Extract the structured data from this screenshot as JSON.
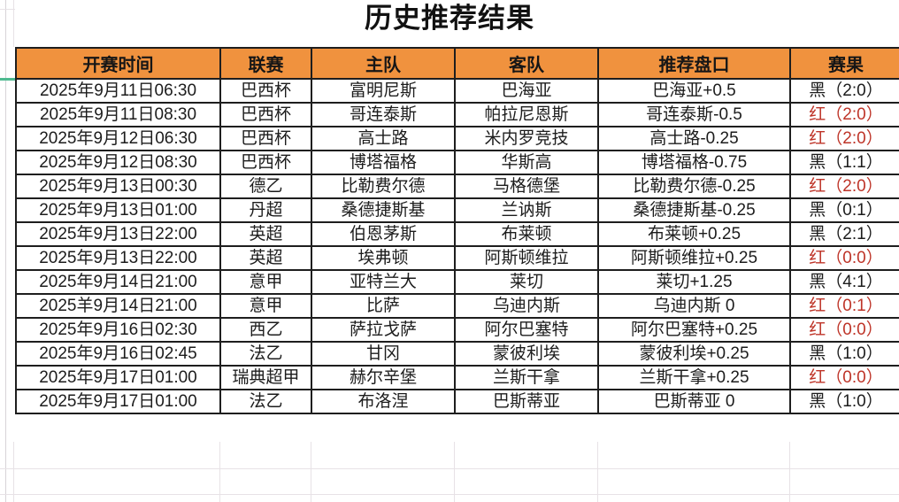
{
  "title": "历史推荐结果",
  "colors": {
    "header_bg": "#f0923e",
    "result_red": "#be3428",
    "result_black": "#1c1c1c",
    "freeze_indicator_green": "#4fba90"
  },
  "table": {
    "headers": [
      "开赛时间",
      "联赛",
      "主队",
      "客队",
      "推荐盘口",
      "赛果"
    ],
    "rows": [
      {
        "time": "2025年9月11日06:30",
        "league": "巴西杯",
        "home": "富明尼斯",
        "away": "巴海亚",
        "handicap": "巴海亚+0.5",
        "result": "黑（2:0）",
        "result_type": "black"
      },
      {
        "time": "2025年9月11日08:30",
        "league": "巴西杯",
        "home": "哥连泰斯",
        "away": "帕拉尼恩斯",
        "handicap": "哥连泰斯-0.5",
        "result": "红（2:0）",
        "result_type": "red"
      },
      {
        "time": "2025年9月12日06:30",
        "league": "巴西杯",
        "home": "高士路",
        "away": "米内罗竞技",
        "handicap": "高士路-0.25",
        "result": "红（2:0）",
        "result_type": "red"
      },
      {
        "time": "2025年9月12日08:30",
        "league": "巴西杯",
        "home": "博塔福格",
        "away": "华斯高",
        "handicap": "博塔福格-0.75",
        "result": "黑（1:1）",
        "result_type": "black"
      },
      {
        "time": "2025年9月13日00:30",
        "league": "德乙",
        "home": "比勒费尔德",
        "away": "马格德堡",
        "handicap": "比勒费尔德-0.25",
        "result": "红（2:0）",
        "result_type": "red"
      },
      {
        "time": "2025年9月13日01:00",
        "league": "丹超",
        "home": "桑德捷斯基",
        "away": "兰讷斯",
        "handicap": "桑德捷斯基-0.25",
        "result": "黑（0:1）",
        "result_type": "black"
      },
      {
        "time": "2025年9月13日22:00",
        "league": "英超",
        "home": "伯恩茅斯",
        "away": "布莱顿",
        "handicap": "布莱顿+0.25",
        "result": "黑（2:1）",
        "result_type": "black"
      },
      {
        "time": "2025年9月13日22:00",
        "league": "英超",
        "home": "埃弗顿",
        "away": "阿斯顿维拉",
        "handicap": "阿斯顿维拉+0.25",
        "result": "红（0:0）",
        "result_type": "red"
      },
      {
        "time": "2025年9月14日21:00",
        "league": "意甲",
        "home": "亚特兰大",
        "away": "莱切",
        "handicap": "莱切+1.25",
        "result": "黑（4:1）",
        "result_type": "black"
      },
      {
        "time": "2025羊9月14日21:00",
        "league": "意甲",
        "home": "比萨",
        "away": "乌迪内斯",
        "handicap": "乌迪内斯 0",
        "result": "红（0:1）",
        "result_type": "red"
      },
      {
        "time": "2025年9月16日02:30",
        "league": "西乙",
        "home": "萨拉戈萨",
        "away": "阿尔巴塞特",
        "handicap": "阿尔巴塞特+0.25",
        "result": "红（0:0）",
        "result_type": "red"
      },
      {
        "time": "2025年9月16日02:45",
        "league": "法乙",
        "home": "甘冈",
        "away": "蒙彼利埃",
        "handicap": "蒙彼利埃+0.25",
        "result": "黑（1:0）",
        "result_type": "black"
      },
      {
        "time": "2025年9月17日01:00",
        "league": "瑞典超甲",
        "home": "赫尔辛堡",
        "away": "兰斯干拿",
        "handicap": "兰斯干拿+0.25",
        "result": "红（0:0）",
        "result_type": "red"
      },
      {
        "time": "2025年9月17日01:00",
        "league": "法乙",
        "home": "布洛涅",
        "away": "巴斯蒂亚",
        "handicap": "巴斯蒂亚 0",
        "result": "黑（1:0）",
        "result_type": "black"
      }
    ]
  }
}
